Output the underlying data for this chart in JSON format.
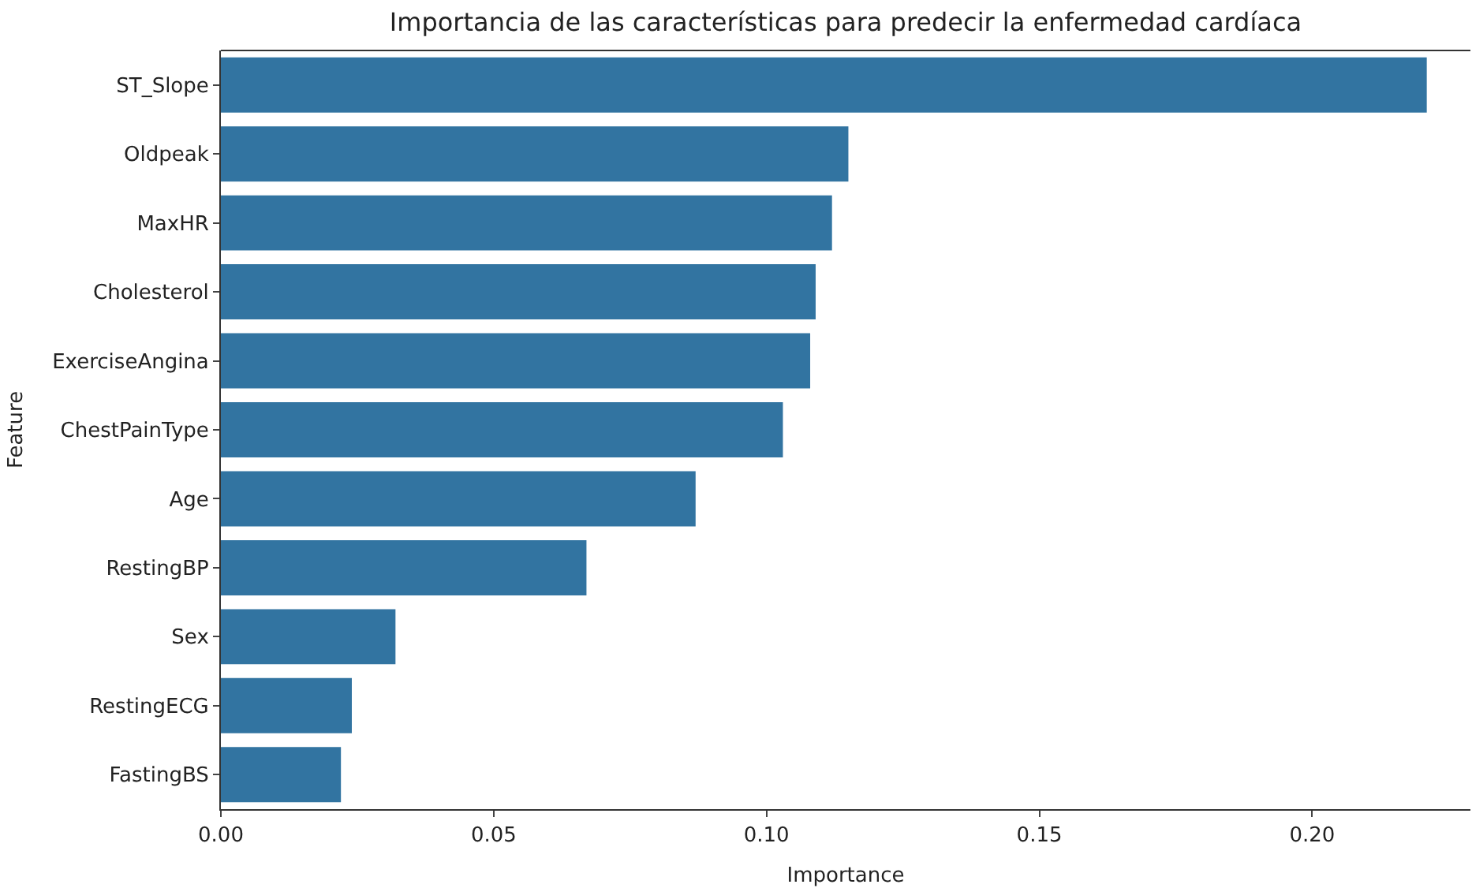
{
  "chart_data": {
    "type": "bar",
    "orientation": "horizontal",
    "title": "Importancia de las características para predecir la enfermedad cardíaca",
    "xlabel": "Importance",
    "ylabel": "Feature",
    "categories": [
      "ST_Slope",
      "Oldpeak",
      "MaxHR",
      "Cholesterol",
      "ExerciseAngina",
      "ChestPainType",
      "Age",
      "RestingBP",
      "Sex",
      "RestingECG",
      "FastingBS"
    ],
    "values": [
      0.221,
      0.115,
      0.112,
      0.109,
      0.108,
      0.103,
      0.087,
      0.067,
      0.032,
      0.024,
      0.022
    ],
    "color": "#3274a1",
    "xlim": [
      0,
      0.229
    ],
    "xticks": [
      {
        "value": 0,
        "label": "0.00"
      },
      {
        "value": 0.05,
        "label": "0.05"
      },
      {
        "value": 0.1,
        "label": "0.10"
      },
      {
        "value": 0.15,
        "label": "0.15"
      },
      {
        "value": 0.2,
        "label": "0.20"
      }
    ]
  }
}
